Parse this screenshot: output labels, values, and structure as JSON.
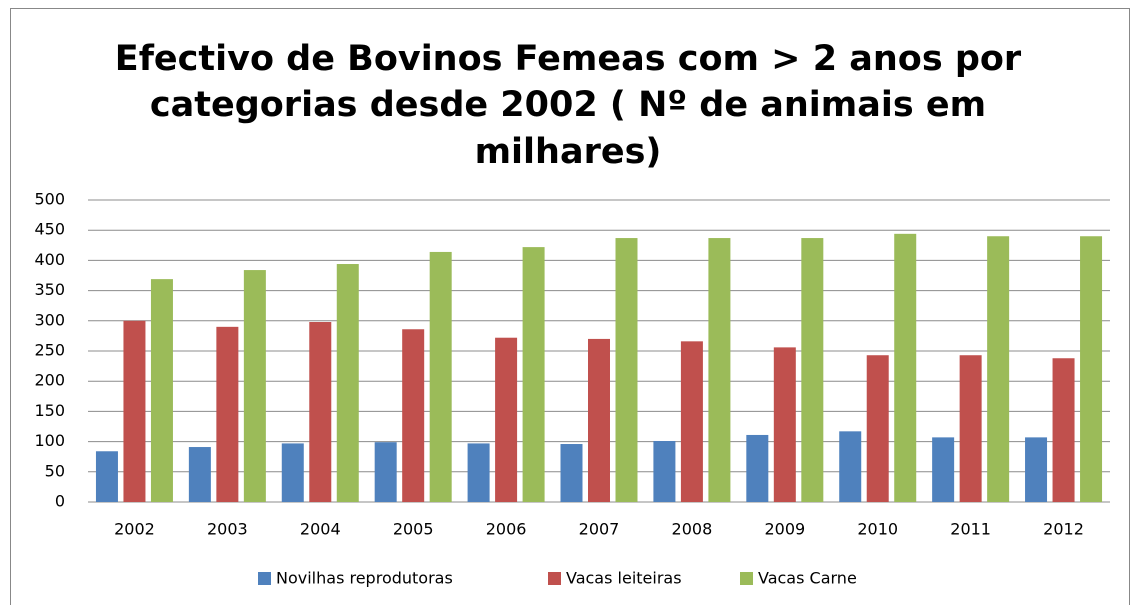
{
  "chart_data": {
    "type": "bar",
    "title": [
      "Efectivo de Bovinos Femeas com > 2 anos por",
      "categorias desde 2002 ( Nº de animais em",
      "milhares)"
    ],
    "categories": [
      "2002",
      "2003",
      "2004",
      "2005",
      "2006",
      "2007",
      "2008",
      "2009",
      "2010",
      "2011",
      "2012"
    ],
    "series": [
      {
        "name": "Novilhas reprodutoras",
        "color": "#4f81bd",
        "values": [
          84,
          91,
          97,
          99,
          97,
          96,
          101,
          111,
          117,
          107,
          107
        ]
      },
      {
        "name": "Vacas leiteiras",
        "color": "#c0504d",
        "values": [
          300,
          290,
          298,
          286,
          272,
          270,
          266,
          256,
          243,
          243,
          238
        ]
      },
      {
        "name": "Vacas Carne",
        "color": "#9bbb59",
        "values": [
          369,
          384,
          394,
          414,
          422,
          437,
          437,
          437,
          444,
          440,
          440
        ]
      }
    ],
    "ylim": [
      0,
      500
    ],
    "yticks": [
      0,
      50,
      100,
      150,
      200,
      250,
      300,
      350,
      400,
      450,
      500
    ],
    "grid": true,
    "legend": "bottom"
  }
}
